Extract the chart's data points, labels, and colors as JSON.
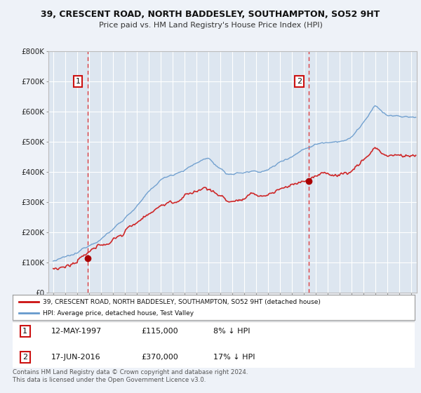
{
  "title_line1": "39, CRESCENT ROAD, NORTH BADDESLEY, SOUTHAMPTON, SO52 9HT",
  "title_line2": "Price paid vs. HM Land Registry's House Price Index (HPI)",
  "background_color": "#eef2f8",
  "plot_bg_color": "#dde6f0",
  "grid_color": "#ffffff",
  "sale1_date_num": 1997.87,
  "sale1_price": 115000,
  "sale2_date_num": 2016.46,
  "sale2_price": 370000,
  "legend_line1": "39, CRESCENT ROAD, NORTH BADDESLEY, SOUTHAMPTON, SO52 9HT (detached house)",
  "legend_line2": "HPI: Average price, detached house, Test Valley",
  "footnote": "Contains HM Land Registry data © Crown copyright and database right 2024.\nThis data is licensed under the Open Government Licence v3.0.",
  "xmin": 1994.6,
  "xmax": 2025.5,
  "ymin": 0,
  "ymax": 800000,
  "red_color": "#cc1111",
  "blue_color": "#6699cc",
  "marker_color": "#aa0000"
}
